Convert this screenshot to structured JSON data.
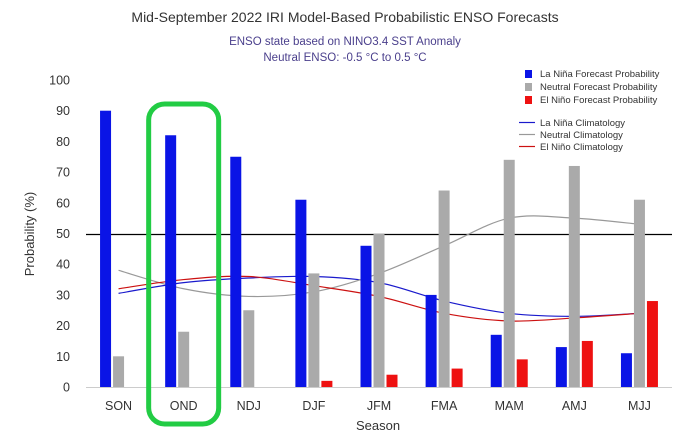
{
  "chart_data": {
    "type": "bar",
    "title": "Mid-September 2022 IRI Model-Based Probabilistic ENSO Forecasts",
    "subtitle_lines": [
      "ENSO state based on NINO3.4 SST Anomaly",
      "Neutral ENSO: -0.5 °C to 0.5 °C"
    ],
    "xlabel": "Season",
    "ylabel": "Probability (%)",
    "ylim": [
      0,
      100
    ],
    "yticks": [
      0,
      10,
      20,
      30,
      40,
      50,
      60,
      70,
      80,
      90,
      100
    ],
    "reference_line": 50,
    "categories": [
      "SON",
      "OND",
      "NDJ",
      "DJF",
      "JFM",
      "FMA",
      "MAM",
      "AMJ",
      "MJJ"
    ],
    "highlight_category": "OND",
    "highlight_color": "#22cc44",
    "legend_position": "top-right",
    "series": [
      {
        "name": "La Niña Forecast Probability",
        "color": "#0a14e6",
        "values": [
          90,
          82,
          75,
          61,
          46,
          30,
          17,
          13,
          11
        ]
      },
      {
        "name": "Neutral Forecast Probability",
        "color": "#aaaaaa",
        "values": [
          10,
          18,
          25,
          37,
          50,
          64,
          74,
          72,
          61
        ]
      },
      {
        "name": "El Niño Forecast Probability",
        "color": "#ee1111",
        "values": [
          0,
          0,
          0,
          2,
          4,
          6,
          9,
          15,
          28
        ]
      }
    ],
    "climatology": [
      {
        "name": "La Niña Climatology",
        "color": "#1a1acc",
        "values": [
          30.5,
          34,
          35.5,
          36,
          34,
          28,
          24,
          23,
          24
        ]
      },
      {
        "name": "Neutral Climatology",
        "color": "#999999",
        "values": [
          38,
          32,
          29.5,
          31,
          37,
          46,
          55,
          55,
          53
        ]
      },
      {
        "name": "El Niño Climatology",
        "color": "#cc1111",
        "values": [
          32,
          35,
          36,
          33,
          29.5,
          24,
          21.5,
          22.5,
          24
        ]
      }
    ]
  }
}
